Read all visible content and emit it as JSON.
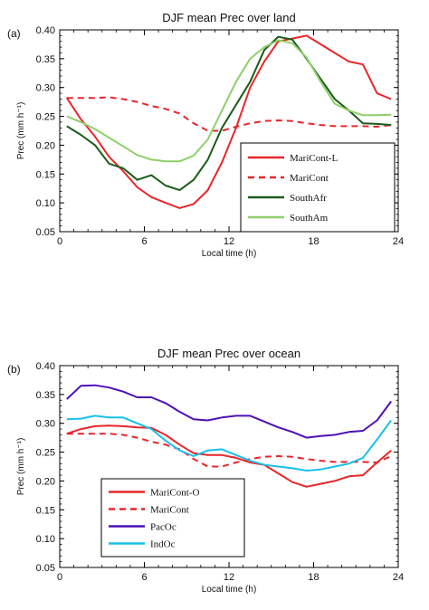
{
  "chart_data": [
    {
      "type": "line",
      "panel_label": "(a)",
      "title": "DJF mean Prec over land",
      "xlabel": "Local time (h)",
      "ylabel": "Prec (mm h⁻¹)",
      "xlim": [
        0,
        24
      ],
      "ylim": [
        0.05,
        0.4
      ],
      "xticks": [
        "0",
        "6",
        "12",
        "18",
        "24"
      ],
      "yticks": [
        "0.05",
        "0.10",
        "0.15",
        "0.20",
        "0.25",
        "0.30",
        "0.35",
        "0.40"
      ],
      "grid": false,
      "legend_position": "bottom-right",
      "series": [
        {
          "name": "MariCont-L",
          "color": "#e8262a",
          "dash": "solid",
          "x": [
            0.5,
            1.5,
            2.5,
            3.5,
            4.5,
            5.5,
            6.5,
            7.5,
            8.5,
            9.5,
            10.5,
            11.5,
            12.5,
            13.5,
            14.5,
            15.5,
            16.5,
            17.5,
            18.5,
            19.5,
            20.5,
            21.5,
            22.5,
            23.5
          ],
          "y": [
            0.282,
            0.245,
            0.215,
            0.18,
            0.155,
            0.127,
            0.11,
            0.1,
            0.091,
            0.098,
            0.122,
            0.17,
            0.23,
            0.3,
            0.345,
            0.38,
            0.385,
            0.39,
            0.375,
            0.36,
            0.345,
            0.34,
            0.29,
            0.28
          ]
        },
        {
          "name": "MariCont",
          "color": "#e8262a",
          "dash": "dashed",
          "x": [
            0.5,
            1.5,
            2.5,
            3.5,
            4.5,
            5.5,
            6.5,
            7.5,
            8.5,
            9.5,
            10.5,
            11.5,
            12.5,
            13.5,
            14.5,
            15.5,
            16.5,
            17.5,
            18.5,
            19.5,
            20.5,
            21.5,
            22.5,
            23.5
          ],
          "y": [
            0.282,
            0.282,
            0.282,
            0.283,
            0.28,
            0.275,
            0.268,
            0.263,
            0.255,
            0.238,
            0.225,
            0.225,
            0.232,
            0.238,
            0.242,
            0.243,
            0.242,
            0.238,
            0.235,
            0.233,
            0.233,
            0.233,
            0.232,
            0.235
          ]
        },
        {
          "name": "SouthAfr",
          "color": "#1a5c1a",
          "dash": "solid",
          "x": [
            0.5,
            1.5,
            2.5,
            3.5,
            4.5,
            5.5,
            6.5,
            7.5,
            8.5,
            9.5,
            10.5,
            11.5,
            12.5,
            13.5,
            14.5,
            15.5,
            16.5,
            17.5,
            18.5,
            19.5,
            20.5,
            21.5,
            22.5,
            23.5
          ],
          "y": [
            0.233,
            0.218,
            0.2,
            0.168,
            0.16,
            0.14,
            0.148,
            0.13,
            0.122,
            0.14,
            0.175,
            0.23,
            0.27,
            0.31,
            0.365,
            0.388,
            0.383,
            0.35,
            0.315,
            0.28,
            0.26,
            0.238,
            0.237,
            0.235
          ]
        },
        {
          "name": "SouthAm",
          "color": "#8fcf6a",
          "dash": "solid",
          "x": [
            0.5,
            1.5,
            2.5,
            3.5,
            4.5,
            5.5,
            6.5,
            7.5,
            8.5,
            9.5,
            10.5,
            11.5,
            12.5,
            13.5,
            14.5,
            15.5,
            16.5,
            17.5,
            18.5,
            19.5,
            20.5,
            21.5,
            22.5,
            23.5
          ],
          "y": [
            0.25,
            0.24,
            0.228,
            0.213,
            0.198,
            0.183,
            0.175,
            0.172,
            0.172,
            0.182,
            0.21,
            0.26,
            0.31,
            0.35,
            0.37,
            0.382,
            0.377,
            0.352,
            0.31,
            0.272,
            0.26,
            0.252,
            0.252,
            0.253
          ]
        }
      ]
    },
    {
      "type": "line",
      "panel_label": "(b)",
      "title": "DJF mean Prec over ocean",
      "xlabel": "Local time (h)",
      "ylabel": "Prec (mm h⁻¹)",
      "xlim": [
        0,
        24
      ],
      "ylim": [
        0.05,
        0.4
      ],
      "xticks": [
        "0",
        "6",
        "12",
        "18",
        "24"
      ],
      "yticks": [
        "0.05",
        "0.10",
        "0.15",
        "0.20",
        "0.25",
        "0.30",
        "0.35",
        "0.40"
      ],
      "grid": false,
      "legend_position": "bottom-left",
      "series": [
        {
          "name": "MariCont-O",
          "color": "#e8262a",
          "dash": "solid",
          "x": [
            0.5,
            1.5,
            2.5,
            3.5,
            4.5,
            5.5,
            6.5,
            7.5,
            8.5,
            9.5,
            10.5,
            11.5,
            12.5,
            13.5,
            14.5,
            15.5,
            16.5,
            17.5,
            18.5,
            19.5,
            20.5,
            21.5,
            22.5,
            23.5
          ],
          "y": [
            0.282,
            0.29,
            0.295,
            0.296,
            0.295,
            0.293,
            0.292,
            0.28,
            0.263,
            0.248,
            0.245,
            0.245,
            0.24,
            0.232,
            0.228,
            0.213,
            0.198,
            0.19,
            0.195,
            0.2,
            0.208,
            0.21,
            0.232,
            0.253
          ]
        },
        {
          "name": "MariCont",
          "color": "#e8262a",
          "dash": "dashed",
          "x": [
            0.5,
            1.5,
            2.5,
            3.5,
            4.5,
            5.5,
            6.5,
            7.5,
            8.5,
            9.5,
            10.5,
            11.5,
            12.5,
            13.5,
            14.5,
            15.5,
            16.5,
            17.5,
            18.5,
            19.5,
            20.5,
            21.5,
            22.5,
            23.5
          ],
          "y": [
            0.282,
            0.282,
            0.282,
            0.282,
            0.28,
            0.275,
            0.268,
            0.263,
            0.255,
            0.238,
            0.225,
            0.225,
            0.232,
            0.238,
            0.242,
            0.243,
            0.242,
            0.238,
            0.235,
            0.233,
            0.233,
            0.233,
            0.232,
            0.243
          ]
        },
        {
          "name": "PacOc",
          "color": "#4d10b8",
          "dash": "solid",
          "x": [
            0.5,
            1.5,
            2.5,
            3.5,
            4.5,
            5.5,
            6.5,
            7.5,
            8.5,
            9.5,
            10.5,
            11.5,
            12.5,
            13.5,
            14.5,
            15.5,
            16.5,
            17.5,
            18.5,
            19.5,
            20.5,
            21.5,
            22.5,
            23.5
          ],
          "y": [
            0.342,
            0.365,
            0.366,
            0.362,
            0.355,
            0.345,
            0.345,
            0.335,
            0.32,
            0.307,
            0.305,
            0.31,
            0.313,
            0.313,
            0.303,
            0.293,
            0.285,
            0.275,
            0.278,
            0.28,
            0.285,
            0.287,
            0.305,
            0.338
          ]
        },
        {
          "name": "IndOc",
          "color": "#19c0e8",
          "dash": "solid",
          "x": [
            0.5,
            1.5,
            2.5,
            3.5,
            4.5,
            5.5,
            6.5,
            7.5,
            8.5,
            9.5,
            10.5,
            11.5,
            12.5,
            13.5,
            14.5,
            15.5,
            16.5,
            17.5,
            18.5,
            19.5,
            20.5,
            21.5,
            22.5,
            23.5
          ],
          "y": [
            0.307,
            0.308,
            0.313,
            0.31,
            0.31,
            0.3,
            0.29,
            0.27,
            0.253,
            0.243,
            0.253,
            0.255,
            0.245,
            0.235,
            0.228,
            0.225,
            0.222,
            0.218,
            0.22,
            0.225,
            0.23,
            0.24,
            0.272,
            0.305
          ]
        }
      ]
    }
  ]
}
